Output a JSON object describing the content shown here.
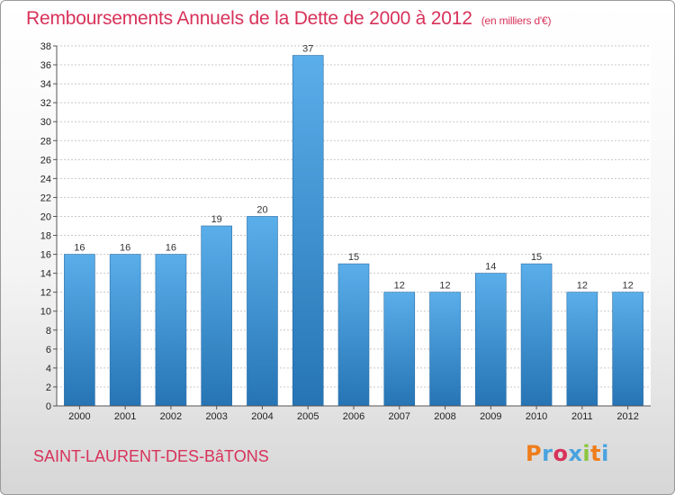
{
  "header": {
    "title": "Remboursements Annuels de la Dette de 2000 à 2012",
    "unit": "(en milliers d'€)"
  },
  "footer": {
    "town": "SAINT-LAURENT-DES-BâTONS",
    "logo": "Proxiti"
  },
  "colors": {
    "accent": "#d8325a",
    "bar_top": "#5aaeea",
    "bar_bottom": "#2674b4",
    "logo": [
      "#ef7d1a",
      "#4aa3df",
      "#d8325a",
      "#4aa3df",
      "#8cc63f",
      "#ef7d1a",
      "#4aa3df"
    ]
  },
  "chart_data": {
    "type": "bar",
    "title": "Remboursements Annuels de la Dette de 2000 à 2012",
    "xlabel": "",
    "ylabel": "",
    "categories": [
      "2000",
      "2001",
      "2002",
      "2003",
      "2004",
      "2005",
      "2006",
      "2007",
      "2008",
      "2009",
      "2010",
      "2011",
      "2012"
    ],
    "values": [
      16,
      16,
      16,
      19,
      20,
      37,
      15,
      12,
      12,
      14,
      15,
      12,
      12
    ],
    "ylim": [
      0,
      38
    ],
    "yticks": [
      0,
      2,
      4,
      6,
      8,
      10,
      12,
      14,
      16,
      18,
      20,
      22,
      24,
      26,
      28,
      30,
      32,
      34,
      36,
      38
    ],
    "grid": true,
    "legend": "none"
  }
}
